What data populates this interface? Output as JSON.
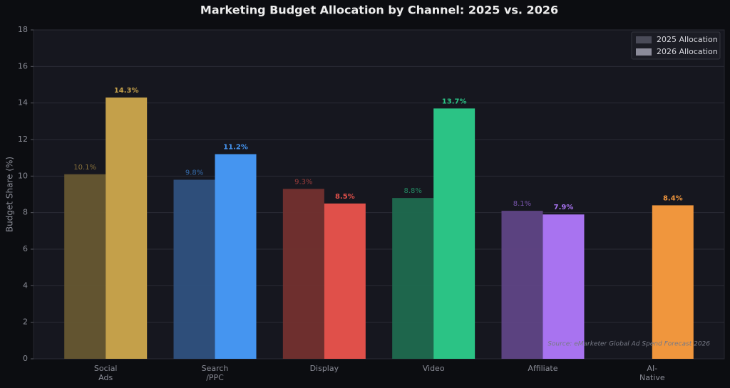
{
  "chart_data": {
    "type": "bar",
    "title": "Marketing Budget Allocation by Channel: 2025 vs. 2026",
    "y_label": "Budget Share (%)",
    "annotation": "Source: eMarketer Global Ad Spend Forecast 2026",
    "categories": [
      "Social\nAds",
      "Search\n/PPC",
      "Display",
      "Video",
      "Affiliate",
      "AI-\nNative"
    ],
    "series": [
      {
        "name": "2025 Allocation",
        "color": "#4a4b58",
        "bar_colors": [
          "#665732",
          "#2f5180",
          "#73302f",
          "#1f6a4f",
          "#5f4486",
          null
        ],
        "values": [
          10.1,
          9.8,
          9.3,
          8.8,
          8.1,
          null
        ],
        "value_labels": [
          "10.1%",
          "9.8%",
          "9.3%",
          "8.8%",
          "8.1%",
          null
        ]
      },
      {
        "name": "2026 Allocation",
        "color": "#8b8b99",
        "bar_colors": [
          "#c4a04a",
          "#4595f0",
          "#e0504a",
          "#2bc385",
          "#a873f0",
          "#f0963d"
        ],
        "values": [
          14.3,
          11.2,
          8.5,
          13.7,
          7.9,
          8.4
        ],
        "value_labels": [
          "14.3%",
          "11.2%",
          "8.5%",
          "13.7%",
          "7.9%",
          "8.4%"
        ]
      }
    ],
    "ylim": [
      0,
      18
    ],
    "yticks": [
      0,
      2,
      4,
      6,
      8,
      10,
      12,
      14,
      16,
      18
    ],
    "grid": true,
    "legend": "upper right"
  }
}
